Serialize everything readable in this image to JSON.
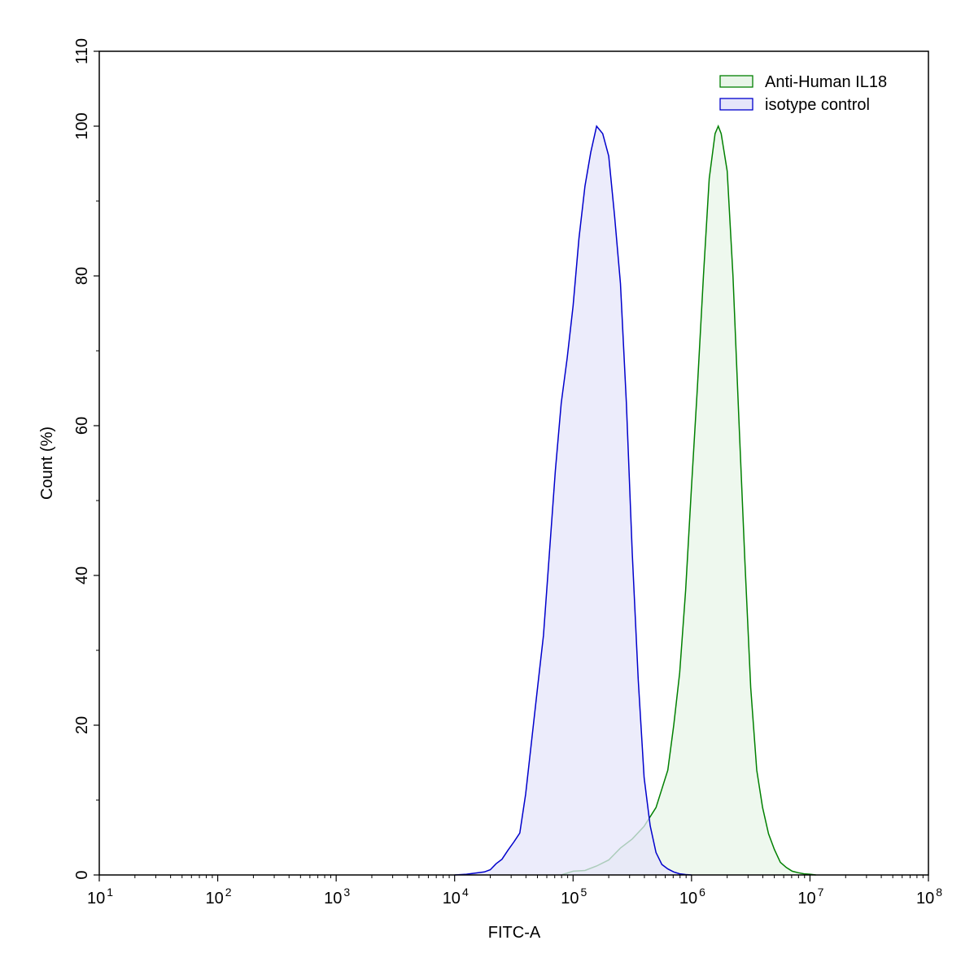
{
  "chart_data": {
    "type": "area",
    "title": "",
    "xlabel": "FITC-A",
    "ylabel": "Count  (%)",
    "xscale": "log10",
    "xlim": [
      10,
      100000000
    ],
    "ylim": [
      0,
      110
    ],
    "x_ticks": [
      {
        "base": "10",
        "exp": "1",
        "value": 10
      },
      {
        "base": "10",
        "exp": "2",
        "value": 100
      },
      {
        "base": "10",
        "exp": "3",
        "value": 1000
      },
      {
        "base": "10",
        "exp": "4",
        "value": 10000
      },
      {
        "base": "10",
        "exp": "5",
        "value": 100000
      },
      {
        "base": "10",
        "exp": "6",
        "value": 1000000
      },
      {
        "base": "10",
        "exp": "7",
        "value": 10000000
      },
      {
        "base": "10",
        "exp": "8",
        "value": 100000000
      }
    ],
    "y_ticks": [
      {
        "label": "0",
        "value": 0
      },
      {
        "label": "20",
        "value": 20
      },
      {
        "label": "40",
        "value": 40
      },
      {
        "label": "60",
        "value": 60
      },
      {
        "label": "80",
        "value": 80
      },
      {
        "label": "100",
        "value": 100
      },
      {
        "label": "110",
        "value": 110
      }
    ],
    "grid": false,
    "legend_position": "top-right",
    "series": [
      {
        "name": "Anti-Human IL18",
        "line_color": "#008000",
        "fill_color": "#e8f5e8",
        "points": [
          [
            79400,
            0
          ],
          [
            100000,
            0.5
          ],
          [
            126000,
            0.6
          ],
          [
            158000,
            1.2
          ],
          [
            200000,
            2.0
          ],
          [
            251000,
            3.6
          ],
          [
            316000,
            4.8
          ],
          [
            398000,
            6.5
          ],
          [
            501000,
            9
          ],
          [
            631000,
            14
          ],
          [
            708000,
            20
          ],
          [
            794000,
            27
          ],
          [
            891000,
            38
          ],
          [
            1000000,
            52
          ],
          [
            1120000,
            65
          ],
          [
            1260000,
            80
          ],
          [
            1410000,
            93
          ],
          [
            1580000,
            99
          ],
          [
            1680000,
            100
          ],
          [
            1780000,
            99
          ],
          [
            2000000,
            94
          ],
          [
            2240000,
            80
          ],
          [
            2510000,
            61
          ],
          [
            2820000,
            42
          ],
          [
            3160000,
            25
          ],
          [
            3550000,
            14
          ],
          [
            3980000,
            9
          ],
          [
            4470000,
            5.5
          ],
          [
            5010000,
            3.4
          ],
          [
            5620000,
            1.7
          ],
          [
            6310000,
            1.0
          ],
          [
            7080000,
            0.5
          ],
          [
            7940000,
            0.3
          ],
          [
            8910000,
            0.15
          ],
          [
            10000000,
            0.1
          ],
          [
            11200000,
            0
          ]
        ]
      },
      {
        "name": "isotype control",
        "line_color": "#0000cc",
        "fill_color": "#e6e6fa",
        "points": [
          [
            10000,
            0
          ],
          [
            12600,
            0.1
          ],
          [
            15800,
            0.3
          ],
          [
            17800,
            0.4
          ],
          [
            20000,
            0.7
          ],
          [
            22400,
            1.5
          ],
          [
            25100,
            2.1
          ],
          [
            28200,
            3.3
          ],
          [
            31600,
            4.4
          ],
          [
            35500,
            5.6
          ],
          [
            39800,
            10.8
          ],
          [
            44700,
            18
          ],
          [
            50100,
            25
          ],
          [
            56200,
            32
          ],
          [
            63100,
            43
          ],
          [
            70800,
            54
          ],
          [
            79400,
            63
          ],
          [
            89100,
            69
          ],
          [
            100000,
            76
          ],
          [
            112000,
            85
          ],
          [
            126000,
            92
          ],
          [
            141000,
            96.5
          ],
          [
            158000,
            100
          ],
          [
            178000,
            99
          ],
          [
            200000,
            96
          ],
          [
            224000,
            88
          ],
          [
            251000,
            79
          ],
          [
            282000,
            63
          ],
          [
            316000,
            43
          ],
          [
            355000,
            26
          ],
          [
            398000,
            13
          ],
          [
            447000,
            6.6
          ],
          [
            501000,
            3
          ],
          [
            562000,
            1.4
          ],
          [
            631000,
            0.8
          ],
          [
            708000,
            0.4
          ],
          [
            794000,
            0.15
          ],
          [
            891000,
            0.05
          ],
          [
            1000000,
            0
          ]
        ]
      }
    ]
  }
}
